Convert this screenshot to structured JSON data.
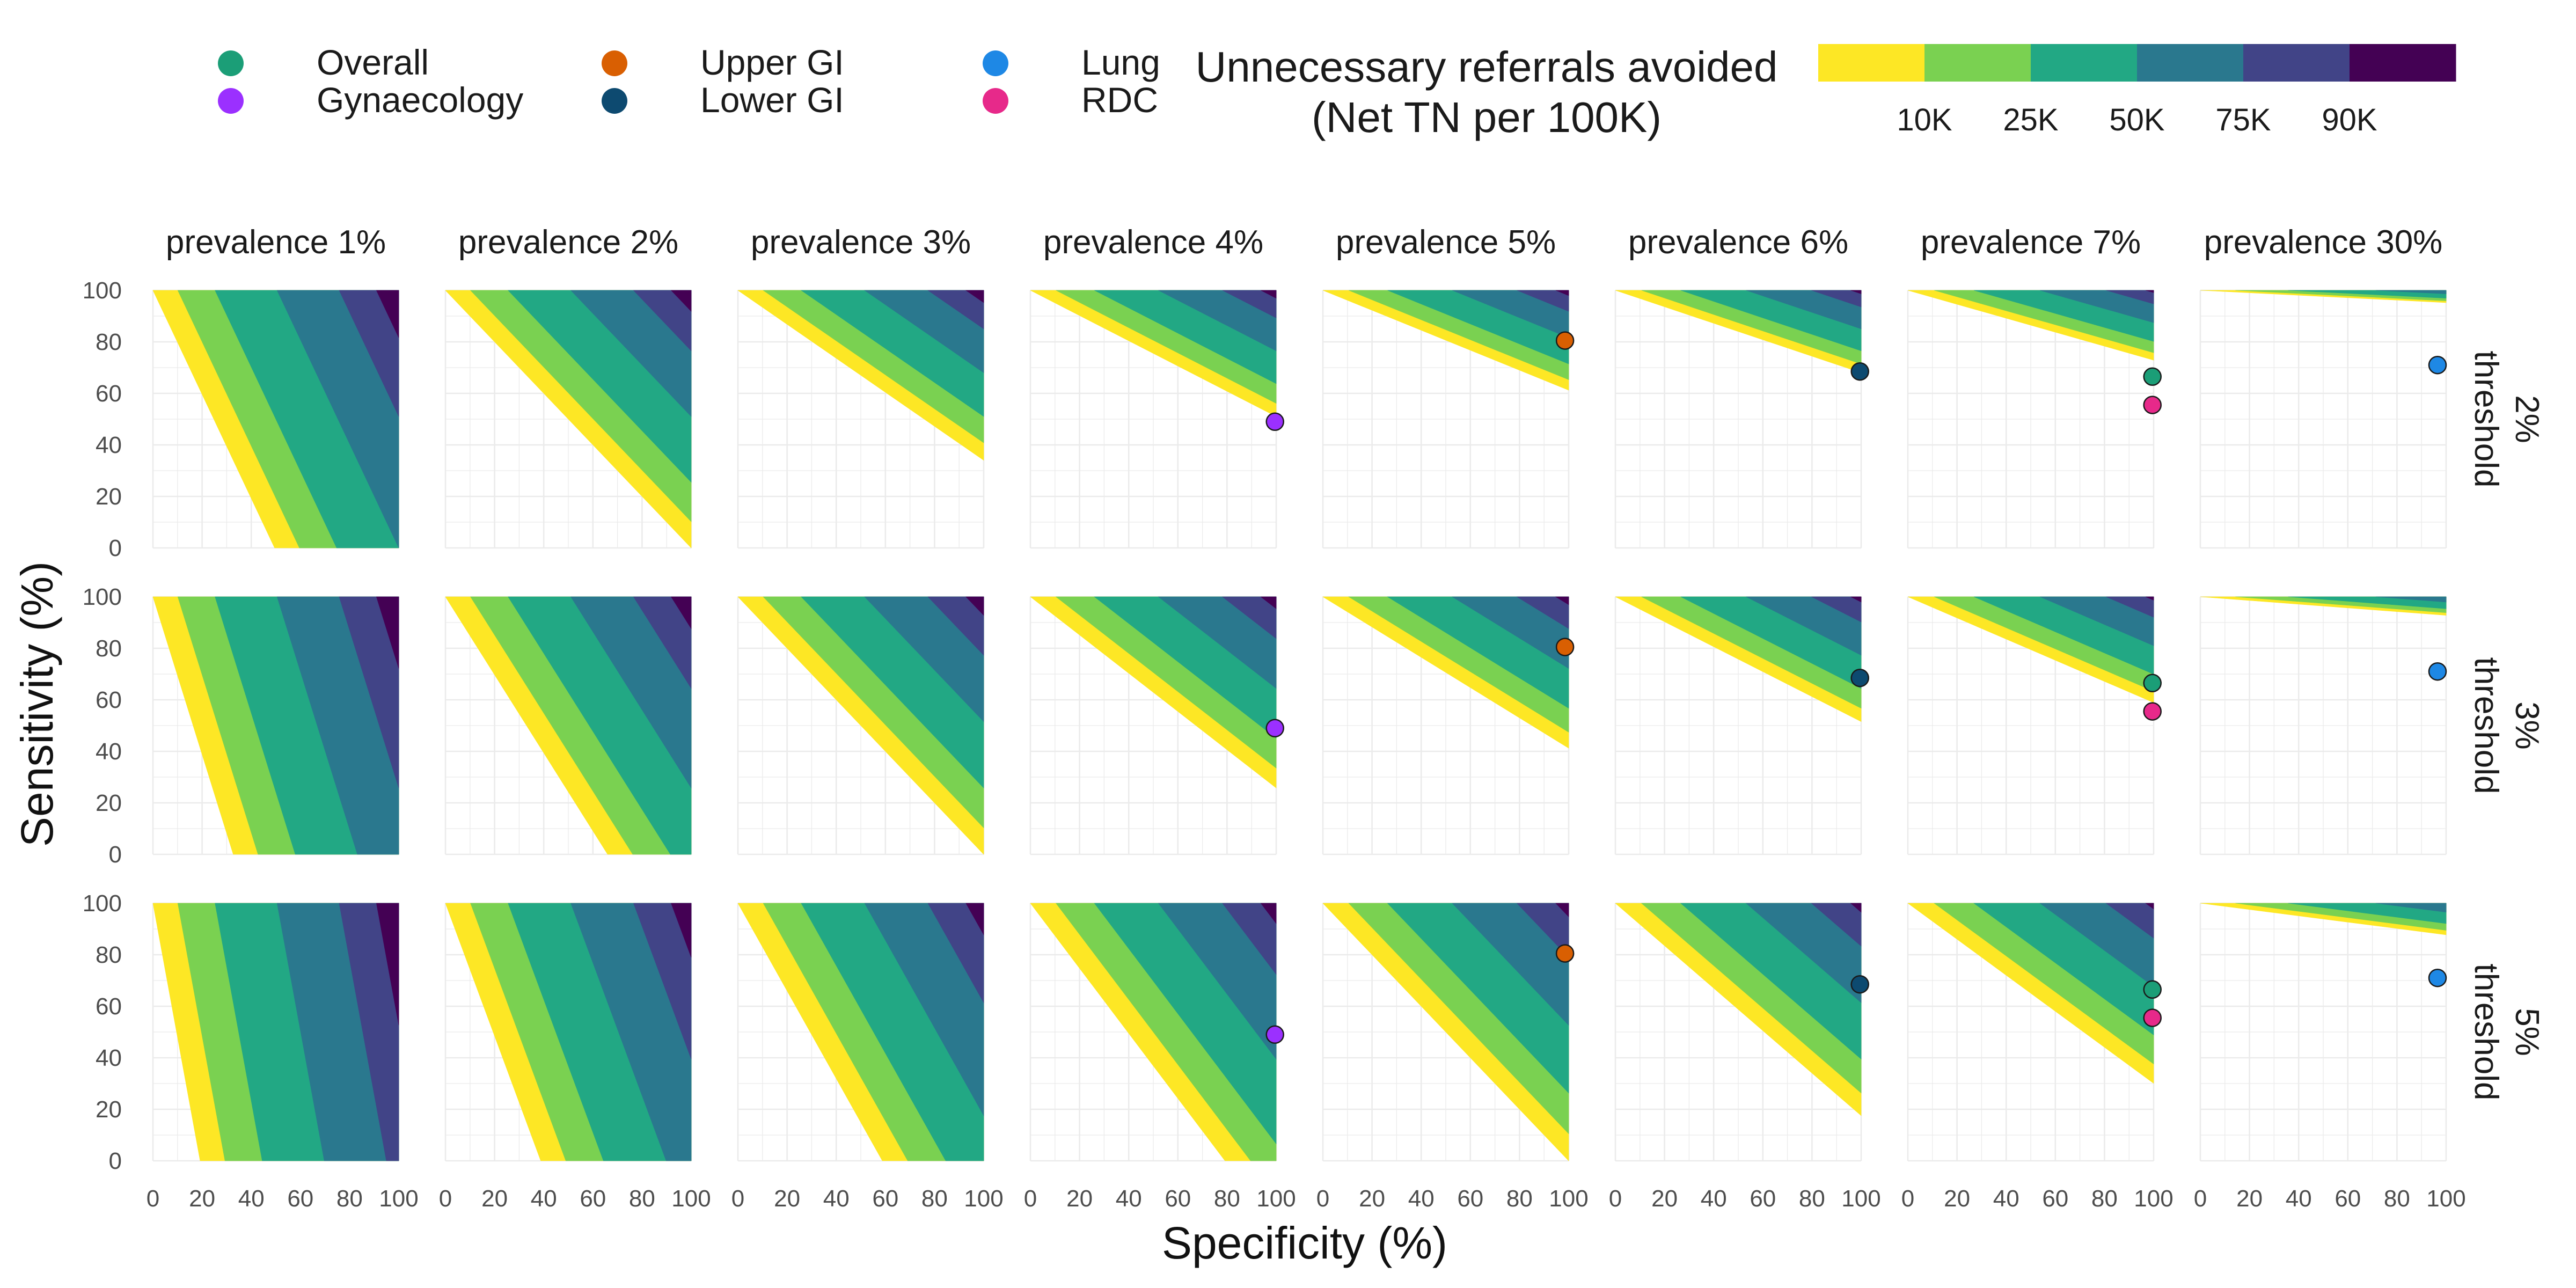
{
  "chart_data": {
    "type": "heatmap",
    "title": "",
    "xlabel": "Specificity (%)",
    "ylabel": "Sensitivity (%)",
    "xlim": [
      0,
      100
    ],
    "ylim": [
      0,
      100
    ],
    "x_ticks": [
      "0",
      "20",
      "40",
      "60",
      "80",
      "100"
    ],
    "y_ticks": [
      "0",
      "20",
      "40",
      "60",
      "80",
      "100"
    ],
    "grid": true,
    "legend_position": "top",
    "fill_legend": {
      "title_line1": "Unnecessary referrals avoided",
      "title_line2": "(Net TN per 100K)",
      "breaks": [
        "10K",
        "25K",
        "50K",
        "75K",
        "90K"
      ],
      "colors": [
        "#FDE725",
        "#7AD151",
        "#22A884",
        "#2A788E",
        "#414487",
        "#440154"
      ]
    },
    "point_legend": [
      {
        "name": "Overall",
        "color": "#1B9E77"
      },
      {
        "name": "Gynaecology",
        "color": "#9B30FF"
      },
      {
        "name": "Upper GI",
        "color": "#D95F02"
      },
      {
        "name": "Lower GI",
        "color": "#0D4A70"
      },
      {
        "name": "Lung",
        "color": "#1E88E5"
      },
      {
        "name": "RDC",
        "color": "#E7298A"
      }
    ],
    "prevalences": [
      {
        "label": "prevalence 1%",
        "value": 0.01
      },
      {
        "label": "prevalence 2%",
        "value": 0.02
      },
      {
        "label": "prevalence 3%",
        "value": 0.03
      },
      {
        "label": "prevalence 4%",
        "value": 0.04
      },
      {
        "label": "prevalence 5%",
        "value": 0.05
      },
      {
        "label": "prevalence 6%",
        "value": 0.06
      },
      {
        "label": "prevalence 7%",
        "value": 0.07
      },
      {
        "label": "prevalence 30%",
        "value": 0.3
      }
    ],
    "thresholds": [
      {
        "label": "2%",
        "sublabel": "threshold",
        "value": 0.02
      },
      {
        "label": "3%",
        "sublabel": "threshold",
        "value": 0.03
      },
      {
        "label": "5%",
        "sublabel": "threshold",
        "value": 0.05
      }
    ],
    "band_breaks_net_tn_per_100k": [
      0,
      10000,
      25000,
      50000,
      75000,
      90000
    ],
    "points": [
      {
        "group": "Gynaecology",
        "prevalence": "prevalence 4%",
        "specificity": 99.5,
        "sensitivity": 49
      },
      {
        "group": "Upper GI",
        "prevalence": "prevalence 5%",
        "specificity": 98.5,
        "sensitivity": 80.5
      },
      {
        "group": "Lower GI",
        "prevalence": "prevalence 6%",
        "specificity": 99.5,
        "sensitivity": 68.5
      },
      {
        "group": "Overall",
        "prevalence": "prevalence 7%",
        "specificity": 99.5,
        "sensitivity": 66.5
      },
      {
        "group": "RDC",
        "prevalence": "prevalence 7%",
        "specificity": 99.5,
        "sensitivity": 55.5
      },
      {
        "group": "Lung",
        "prevalence": "prevalence 30%",
        "specificity": 96.5,
        "sensitivity": 71
      }
    ]
  }
}
